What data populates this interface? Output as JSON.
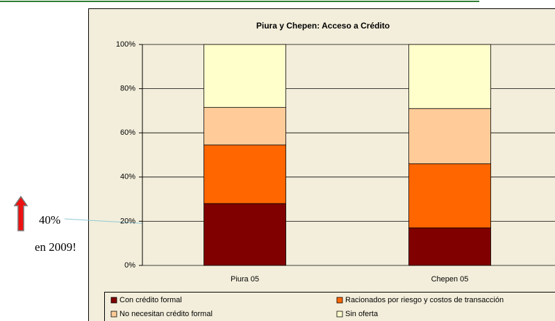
{
  "chart_data": {
    "type": "stacked_bar",
    "title": "Piura y Chepen: Acceso a Crédito",
    "categories": [
      "Piura 05",
      "Chepen 05"
    ],
    "series": [
      {
        "name": "Con crédito formal",
        "color": "#800000",
        "values": [
          28,
          17
        ]
      },
      {
        "name": "Racionados por riesgo y costos de transacción",
        "color": "#ff6600",
        "values": [
          26.5,
          29
        ]
      },
      {
        "name": "No necesitan crédito formal",
        "color": "#ffcc99",
        "values": [
          17,
          25
        ]
      },
      {
        "name": "Sin oferta",
        "color": "#ffffcc",
        "values": [
          28.5,
          29
        ]
      }
    ],
    "ylim": [
      0,
      100
    ],
    "yticks": [
      {
        "value": 0,
        "label": "0%"
      },
      {
        "value": 20,
        "label": "20%"
      },
      {
        "value": 40,
        "label": "40%"
      },
      {
        "value": 60,
        "label": "60%"
      },
      {
        "value": 80,
        "label": "80%"
      },
      {
        "value": 100,
        "label": "100%"
      }
    ],
    "grid": true,
    "annotations": [
      "40%",
      "en 2009!"
    ]
  }
}
